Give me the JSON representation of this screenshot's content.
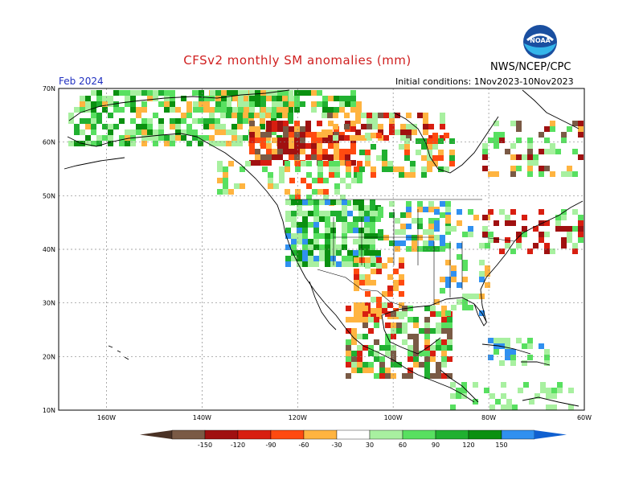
{
  "title": "CFSv2 monthly SM anomalies (mm)",
  "organization": "NWS/NCEP/CPC",
  "valid_month": "Feb 2024",
  "initial_conditions": "Initial conditions: 1Nov2023-10Nov2023",
  "logo_text": "NOAA",
  "colors": {
    "dry_150": "#7a5a45",
    "dry_120": "#a01010",
    "dry_90": "#d81e10",
    "dry_60": "#ff4a10",
    "dry_30": "#ffb440",
    "wet_30": "#a8f0a0",
    "wet_60": "#58e060",
    "wet_90": "#20b030",
    "wet_120": "#0a9010",
    "wet_150": "#3090f0",
    "wet_max": "#1060d0"
  },
  "map": {
    "lat_labels": [
      "70N",
      "60N",
      "50N",
      "40N",
      "30N",
      "20N",
      "10N"
    ],
    "lon_labels": [
      "160W",
      "140W",
      "120W",
      "100W",
      "80W",
      "60W"
    ],
    "extent": {
      "lon_min": -170,
      "lon_max": -60,
      "lat_min": 10,
      "lat_max": 70
    }
  },
  "legend": {
    "labels": [
      "-150",
      "-120",
      "-90",
      "-60",
      "-30",
      "30",
      "60",
      "90",
      "120",
      "150"
    ]
  }
}
